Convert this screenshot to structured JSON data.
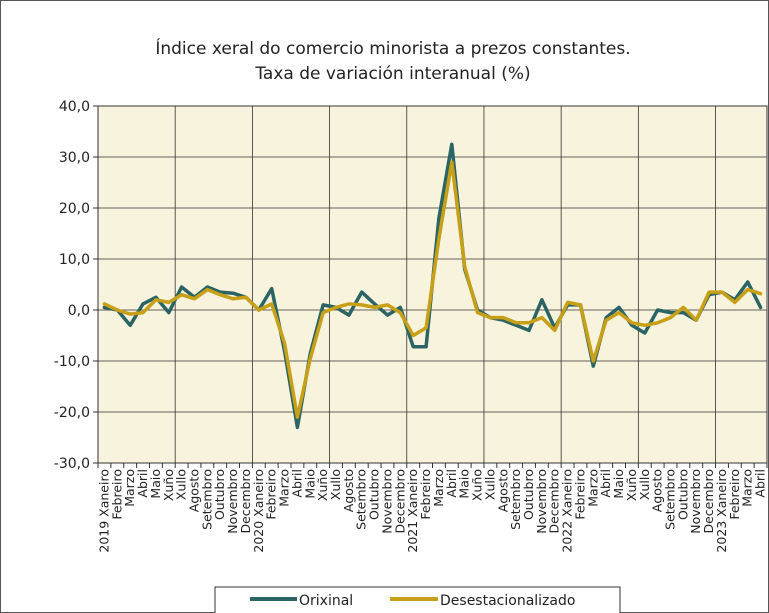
{
  "chart_data": {
    "type": "line",
    "title_lines": [
      "Índice xeral do comercio minorista a prezos constantes.",
      "Taxa de variación interanual (%)"
    ],
    "xlabel": "",
    "ylabel": "",
    "ylim": [
      -30,
      40
    ],
    "y_ticks": [
      "40,0",
      "30,0",
      "20,0",
      "10,0",
      "0,0",
      "-10,0",
      "-20,0",
      "-30,0"
    ],
    "grid": true,
    "plot_background": "#f8f3dc",
    "legend_position": "bottom",
    "categories": [
      "2019 Xaneiro",
      "Febreiro",
      "Marzo",
      "Abril",
      "Maio",
      "Xuño",
      "Xullo",
      "Agosto",
      "Setembro",
      "Outubro",
      "Novembro",
      "Decembro",
      "2020 Xaneiro",
      "Febreiro",
      "Marzo",
      "Abril",
      "Maio",
      "Xuño",
      "Xullo",
      "Agosto",
      "Setembro",
      "Outubro",
      "Novembro",
      "Decembro",
      "2021 Xaneiro",
      "Febreiro",
      "Marzo",
      "Abril",
      "Maio",
      "Xuño",
      "Xullo",
      "Agosto",
      "Setembro",
      "Outubro",
      "Novembro",
      "Decembro",
      "2022 Xaneiro",
      "Febreiro",
      "Marzo",
      "Abril",
      "Maio",
      "Xuño",
      "Xullo",
      "Agosto",
      "Setembro",
      "Outubro",
      "Novembro",
      "Decembro",
      "2023 Xaneiro",
      "Febreiro",
      "Marzo",
      "Abril"
    ],
    "series": [
      {
        "name": "Orixinal",
        "color": "#2a6464",
        "values": [
          0.5,
          0.0,
          -3.0,
          1.2,
          2.5,
          -0.5,
          4.5,
          2.5,
          4.5,
          3.5,
          3.3,
          2.5,
          0.0,
          4.2,
          -8.0,
          -23.0,
          -8.5,
          1.0,
          0.5,
          -1.0,
          3.5,
          1.2,
          -1.0,
          0.5,
          -7.2,
          -7.2,
          18.0,
          32.5,
          8.0,
          0.0,
          -1.5,
          -2.0,
          -3.0,
          -4.0,
          2.0,
          -3.5,
          1.0,
          1.0,
          -11.0,
          -1.5,
          0.5,
          -3.0,
          -4.5,
          0.0,
          -0.5,
          -0.5,
          -2.0,
          3.0,
          3.5,
          2.0,
          5.5,
          0.5
        ]
      },
      {
        "name": "Desestacionalizado",
        "color": "#c7a017",
        "values": [
          1.2,
          0.0,
          -0.8,
          -0.5,
          2.0,
          1.5,
          3.0,
          2.2,
          4.0,
          3.0,
          2.2,
          2.5,
          0.0,
          1.2,
          -6.5,
          -21.0,
          -9.5,
          -0.5,
          0.5,
          1.2,
          1.0,
          0.5,
          1.0,
          -0.5,
          -5.0,
          -3.5,
          14.0,
          29.0,
          8.5,
          -0.5,
          -1.5,
          -1.5,
          -2.5,
          -2.5,
          -1.5,
          -4.0,
          1.5,
          1.0,
          -10.0,
          -2.0,
          -0.5,
          -2.5,
          -3.0,
          -2.5,
          -1.5,
          0.5,
          -2.0,
          3.5,
          3.5,
          1.5,
          4.0,
          3.2
        ]
      }
    ]
  }
}
